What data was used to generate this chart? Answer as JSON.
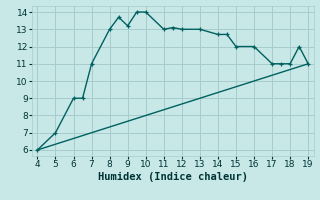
{
  "xlabel": "Humidex (Indice chaleur)",
  "bg_color": "#c8e8e8",
  "grid_color": "#a8cccc",
  "line_color": "#006060",
  "curve1_x": [
    4,
    5,
    6,
    6.5,
    7,
    8,
    8.5,
    9,
    9.5,
    10,
    11,
    11.5,
    12,
    13,
    14,
    14.5,
    15,
    16,
    17,
    17.5,
    18,
    18.5,
    19
  ],
  "curve1_y": [
    6.0,
    7.0,
    9.0,
    9.0,
    11.0,
    13.0,
    13.7,
    13.2,
    14.0,
    14.0,
    13.0,
    13.1,
    13.0,
    13.0,
    12.7,
    12.7,
    12.0,
    12.0,
    11.0,
    11.0,
    11.0,
    12.0,
    11.0
  ],
  "curve2_x": [
    4,
    19
  ],
  "curve2_y": [
    6.0,
    11.0
  ],
  "xlim": [
    3.7,
    19.3
  ],
  "ylim": [
    5.65,
    14.35
  ],
  "xticks": [
    4,
    5,
    6,
    7,
    8,
    9,
    10,
    11,
    12,
    13,
    14,
    15,
    16,
    17,
    18,
    19
  ],
  "yticks": [
    6,
    7,
    8,
    9,
    10,
    11,
    12,
    13,
    14
  ],
  "tick_fontsize": 6.5,
  "xlabel_fontsize": 7.5
}
